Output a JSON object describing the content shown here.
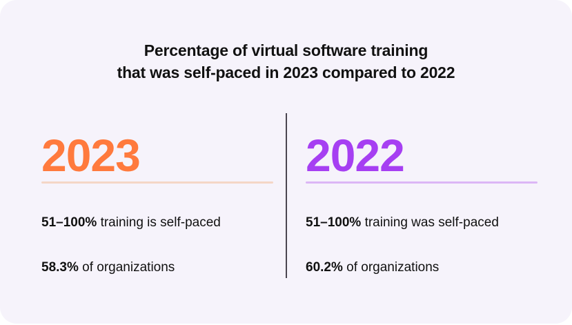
{
  "chart_data": {
    "type": "table",
    "title_line1": "Percentage of virtual software training",
    "title_line2": "that was self-paced in 2023 compared to 2022",
    "columns": [
      {
        "year": "2023",
        "color": "#ff7a3d",
        "underline_color": "#f4d6c6",
        "range_value": "51–100%",
        "range_text": " training is self-paced",
        "orgs_value": "58.3%",
        "orgs_text": " of organizations"
      },
      {
        "year": "2022",
        "color": "#a63ff2",
        "underline_color": "#dcb6f6",
        "range_value": "51–100%",
        "range_text": " training was self-paced",
        "orgs_value": "60.2%",
        "orgs_text": " of organizations"
      }
    ]
  }
}
